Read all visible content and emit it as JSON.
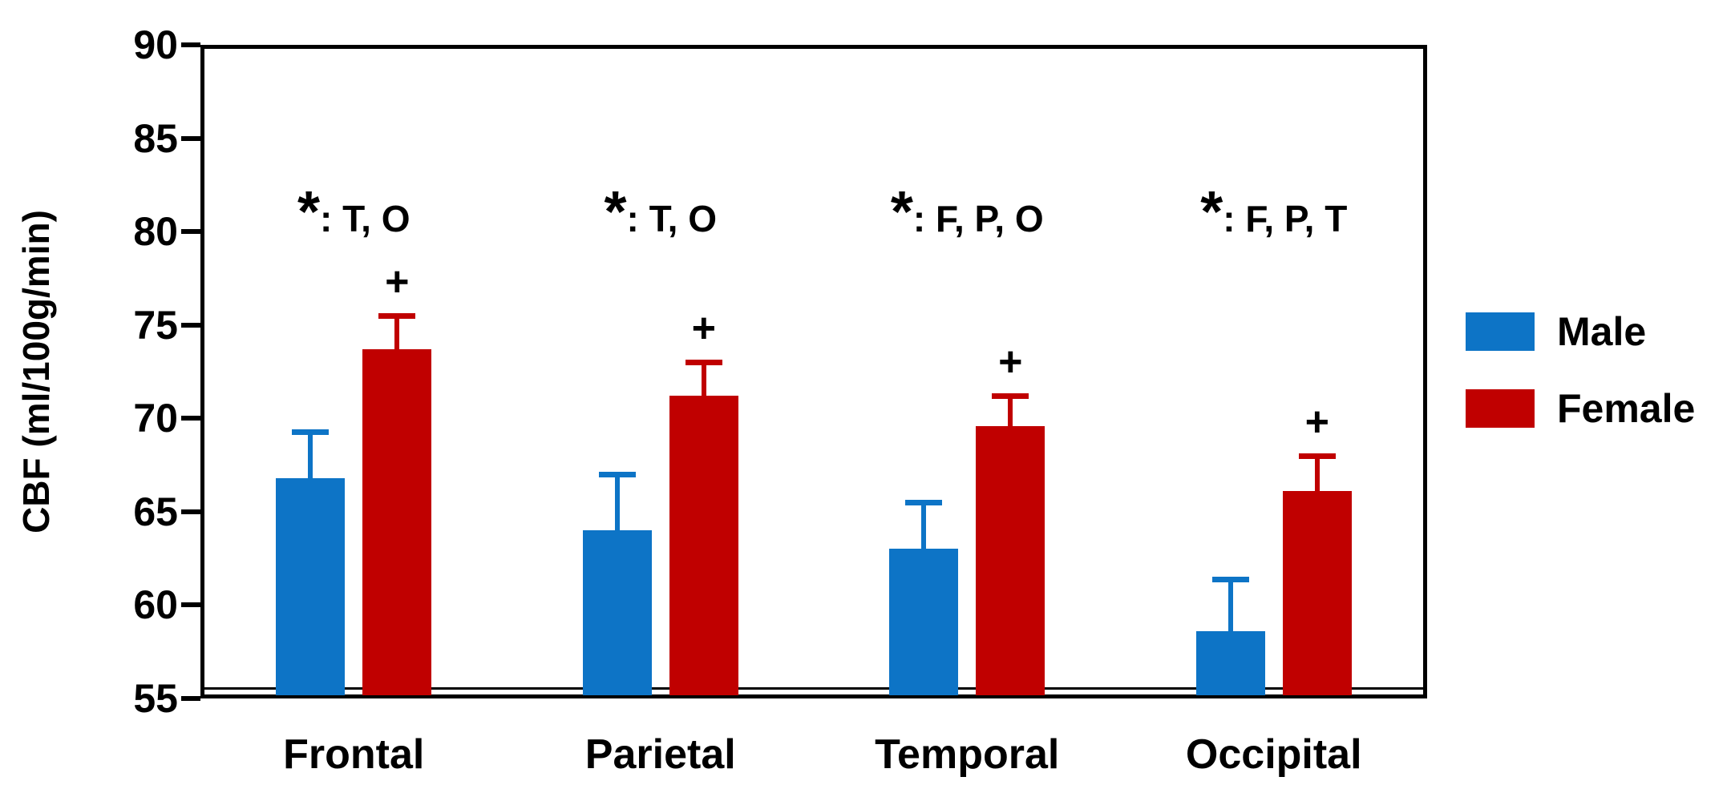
{
  "chart_data": {
    "type": "bar",
    "title": "",
    "xlabel": "",
    "ylabel": "CBF (ml/100g/min)",
    "ylim": [
      55,
      90
    ],
    "yticks": [
      90,
      85,
      80,
      75,
      70,
      65,
      60,
      55
    ],
    "grid": false,
    "categories": [
      "Frontal",
      "Parietal",
      "Temporal",
      "Occipital"
    ],
    "series": [
      {
        "name": "Male",
        "color": "#0d74c6",
        "values": [
          66.8,
          64.0,
          63.0,
          58.6
        ],
        "errors_up": [
          2.5,
          3.0,
          2.5,
          2.8
        ],
        "marker": ""
      },
      {
        "name": "Female",
        "color": "#c00000",
        "values": [
          73.7,
          71.2,
          69.6,
          66.1
        ],
        "errors_up": [
          1.8,
          1.8,
          1.6,
          1.9
        ],
        "marker": "+"
      }
    ],
    "annotations": [
      {
        "star": "*",
        "text": ": T, O"
      },
      {
        "star": "*",
        "text": ": T, O"
      },
      {
        "star": "*",
        "text": ": F, P, O"
      },
      {
        "star": "*",
        "text": ": F, P, T"
      }
    ],
    "legend": {
      "position": "right",
      "entries": [
        "Male",
        "Female"
      ]
    }
  }
}
